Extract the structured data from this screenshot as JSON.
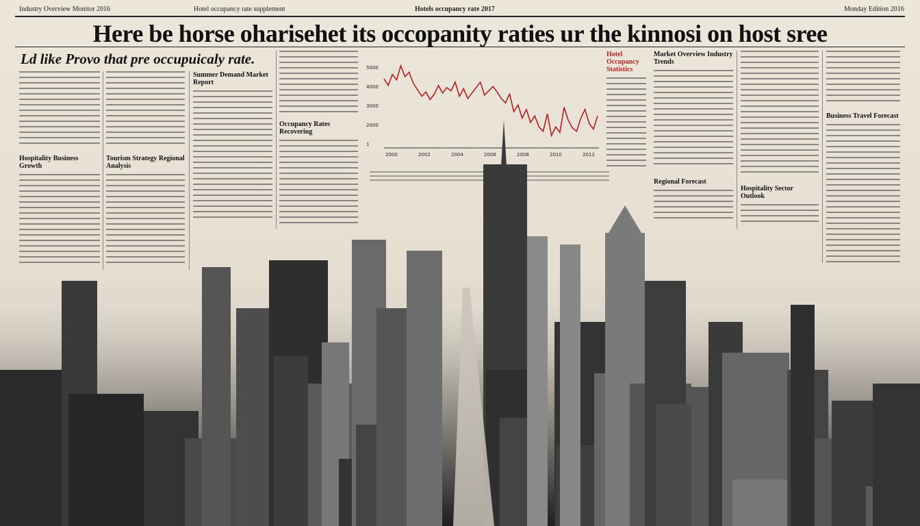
{
  "masthead": {
    "left": "Industry Overview Monitor 2016",
    "center_left": "Hotel occupancy rate supplement",
    "center_right": "Hotels occupancy rate 2017",
    "right": "Monday Edition 2016"
  },
  "headline": "Here be horse oharisehet its occopanity raties ur the kinnosi on host sree",
  "subhead": "Ld like Provo that pre occupuicaly rate.",
  "columns": [
    {
      "heading": "Hospitality Business Growth",
      "accent": false
    },
    {
      "heading": "Tourism Strategy Regional Analysis",
      "accent": false
    },
    {
      "heading": "Summer Demand Market Report",
      "accent": false
    },
    {
      "heading": "Occupancy Rates Recovering",
      "accent": false
    },
    {
      "heading": "Hotel Occupancy Statistics",
      "accent": true
    },
    {
      "heading": "Market Overview Industry Trends",
      "accent": false
    },
    {
      "heading": "Regional Forecast",
      "accent": false
    },
    {
      "heading": "Hospitality Sector Outlook",
      "accent": false
    },
    {
      "heading": "Business Travel Forecast",
      "accent": false
    }
  ],
  "chart_data": {
    "type": "line",
    "title": "",
    "xlabel": "",
    "ylabel": "",
    "yticks": [
      "5000",
      "4000",
      "3000",
      "2000",
      "1"
    ],
    "xticks": [
      "2000",
      "2002",
      "2004",
      "2006",
      "2008",
      "2010",
      "2012"
    ],
    "series": [
      {
        "values": [
          4100,
          3800,
          4300,
          4050,
          4700,
          4200,
          4400,
          3900,
          3600,
          3300,
          3500,
          3150,
          3400,
          3800,
          3450,
          3700,
          3550,
          3950,
          3300,
          3650,
          3200,
          3450,
          3700,
          3950,
          3350,
          3550,
          3750,
          3500,
          3200,
          3000,
          3400,
          2600,
          2900,
          2300,
          2700,
          2100,
          2400,
          1900,
          1700,
          2500,
          1500,
          1900,
          1650,
          2800,
          2200,
          1850,
          1700,
          2300,
          2700,
          2050,
          1800,
          2400
        ]
      }
    ],
    "colors": {
      "line": "#b01e1e",
      "axis": "#333333"
    }
  },
  "skyline": {
    "sky": "#d9d2c6",
    "ground": "#1e1e1e"
  }
}
